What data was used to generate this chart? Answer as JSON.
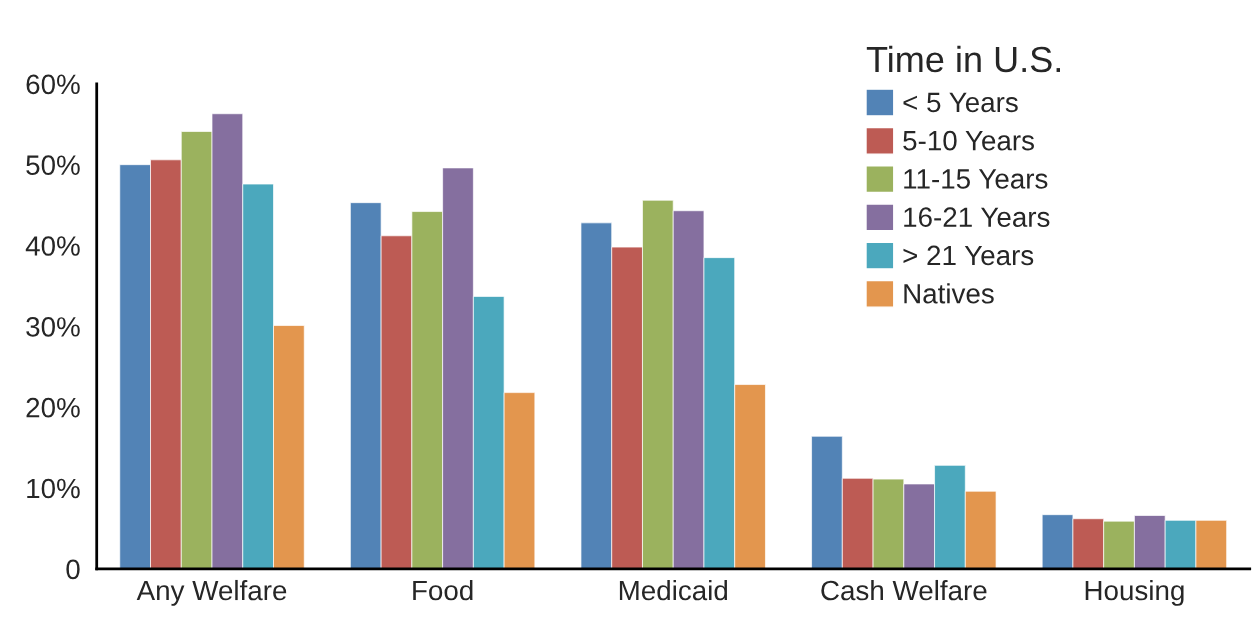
{
  "chart_data": {
    "type": "bar",
    "categories": [
      "Any Welfare",
      "Food",
      "Medicaid",
      "Cash Welfare",
      "Housing"
    ],
    "series": [
      {
        "name": "< 5 Years",
        "color": "#5283b6",
        "values": [
          50.0,
          45.3,
          42.8,
          16.4,
          6.7
        ]
      },
      {
        "name": "5-10 Years",
        "color": "#bd5b54",
        "values": [
          50.6,
          41.2,
          39.8,
          11.2,
          6.2
        ]
      },
      {
        "name": "11-15 Years",
        "color": "#9bb25e",
        "values": [
          54.1,
          44.2,
          45.6,
          11.1,
          5.9
        ]
      },
      {
        "name": "16-21 Years",
        "color": "#856f9f",
        "values": [
          56.3,
          49.6,
          44.3,
          10.5,
          6.6
        ]
      },
      {
        "name": "> 21 Years",
        "color": "#4ba8bd",
        "values": [
          47.6,
          33.7,
          38.5,
          12.8,
          6.0
        ]
      },
      {
        "name": "Natives",
        "color": "#e3964e",
        "values": [
          30.1,
          21.8,
          22.8,
          9.6,
          6.0
        ]
      }
    ],
    "legend_title": "Time in U.S.",
    "legend": "top right",
    "grid": false,
    "ylim": [
      0,
      60
    ],
    "yticks": [
      {
        "value": 0,
        "label": "0"
      },
      {
        "value": 10,
        "label": "10%"
      },
      {
        "value": 20,
        "label": "20%"
      },
      {
        "value": 30,
        "label": "30%"
      },
      {
        "value": 40,
        "label": "40%"
      },
      {
        "value": 50,
        "label": "50%"
      },
      {
        "value": 60,
        "label": "60%"
      }
    ]
  }
}
